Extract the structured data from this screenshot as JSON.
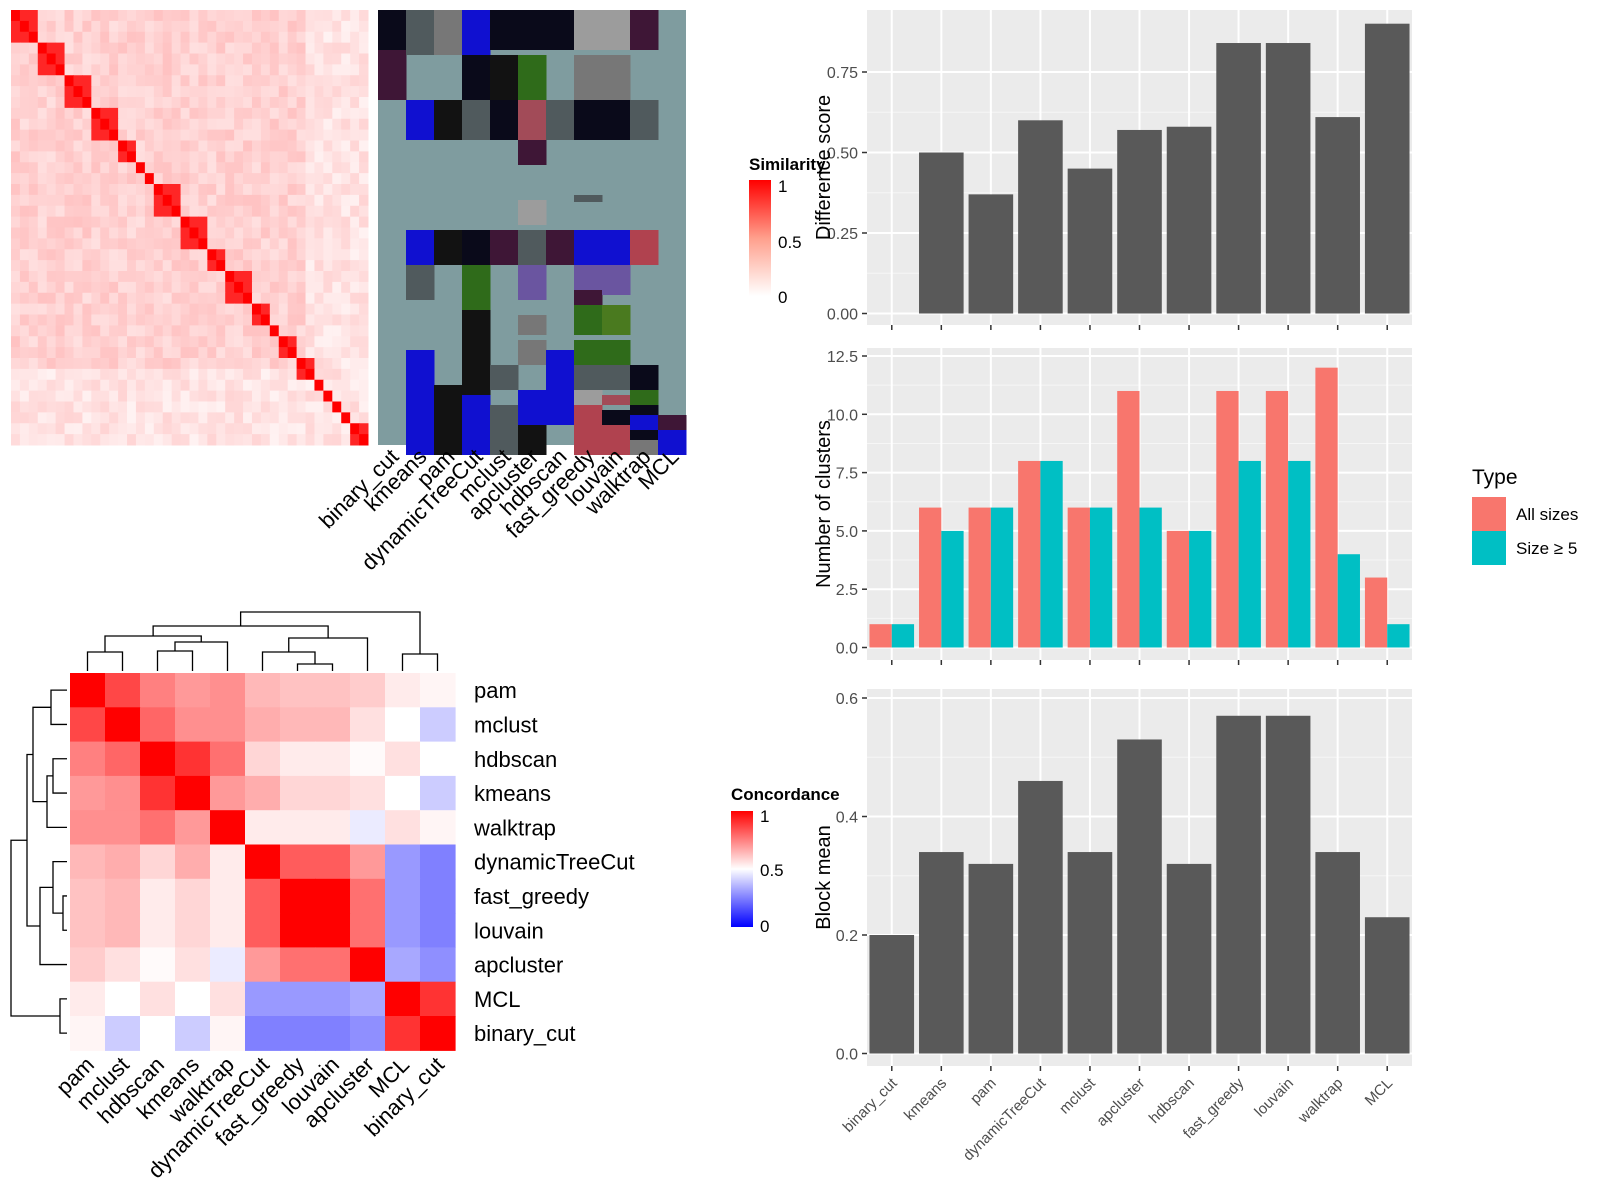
{
  "colors": {
    "panel_bg": "#ebebeb",
    "bar_dark": "#595959",
    "all_sizes": "#f8766d",
    "size_ge_5": "#00bfc4",
    "class_bg": "#7f9c9f"
  },
  "methods_sorted": [
    "binary_cut",
    "kmeans",
    "pam",
    "dynamicTreeCut",
    "mclust",
    "apcluster",
    "hdbscan",
    "fast_greedy",
    "louvain",
    "walktrap",
    "MCL"
  ],
  "similarity_legend": {
    "title": "Similarity",
    "ticks": [
      "1",
      "0.5",
      "0"
    ]
  },
  "concordance_legend": {
    "title": "Concordance",
    "ticks": [
      "1",
      "0.5",
      "0"
    ]
  },
  "chart_data": [
    {
      "type": "bar",
      "ylabel": "Difference score",
      "ylim": [
        0,
        0.9
      ],
      "yticks": [
        "0.00",
        "0.25",
        "0.50",
        "0.75"
      ],
      "categories": [
        "binary_cut",
        "kmeans",
        "pam",
        "dynamicTreeCut",
        "mclust",
        "apcluster",
        "hdbscan",
        "fast_greedy",
        "louvain",
        "walktrap",
        "MCL"
      ],
      "values": [
        0.0,
        0.5,
        0.37,
        0.6,
        0.45,
        0.57,
        0.58,
        0.84,
        0.84,
        0.61,
        0.9
      ]
    },
    {
      "type": "bar",
      "ylabel": "Number of clusters",
      "ylim": [
        0,
        12.5
      ],
      "yticks": [
        "0.0",
        "2.5",
        "5.0",
        "7.5",
        "10.0",
        "12.5"
      ],
      "categories": [
        "binary_cut",
        "kmeans",
        "pam",
        "dynamicTreeCut",
        "mclust",
        "apcluster",
        "hdbscan",
        "fast_greedy",
        "louvain",
        "walktrap",
        "MCL"
      ],
      "legend": {
        "title": "Type",
        "placement": "right"
      },
      "series": [
        {
          "name": "All sizes",
          "values": [
            1,
            6,
            6,
            8,
            6,
            11,
            5,
            11,
            11,
            12,
            3
          ]
        },
        {
          "name": "Size ≥ 5",
          "values": [
            1,
            5,
            6,
            8,
            6,
            6,
            5,
            8,
            8,
            4,
            1
          ]
        }
      ]
    },
    {
      "type": "bar",
      "ylabel": "Block mean",
      "ylim": [
        0,
        0.6
      ],
      "yticks": [
        "0.0",
        "0.2",
        "0.4",
        "0.6"
      ],
      "categories": [
        "binary_cut",
        "kmeans",
        "pam",
        "dynamicTreeCut",
        "mclust",
        "apcluster",
        "hdbscan",
        "fast_greedy",
        "louvain",
        "walktrap",
        "MCL"
      ],
      "values": [
        0.2,
        0.34,
        0.32,
        0.46,
        0.34,
        0.53,
        0.32,
        0.57,
        0.57,
        0.34,
        0.23
      ]
    },
    {
      "type": "heatmap",
      "name": "concordance",
      "order": [
        "pam",
        "mclust",
        "hdbscan",
        "kmeans",
        "walktrap",
        "dynamicTreeCut",
        "fast_greedy",
        "louvain",
        "apcluster",
        "MCL",
        "binary_cut"
      ],
      "values": [
        [
          1.0,
          0.86,
          0.75,
          0.7,
          0.72,
          0.64,
          0.62,
          0.62,
          0.6,
          0.54,
          0.52
        ],
        [
          0.86,
          1.0,
          0.8,
          0.72,
          0.72,
          0.66,
          0.64,
          0.64,
          0.56,
          0.5,
          0.4
        ],
        [
          0.75,
          0.8,
          1.0,
          0.9,
          0.78,
          0.58,
          0.54,
          0.54,
          0.51,
          0.56,
          0.5
        ],
        [
          0.7,
          0.72,
          0.9,
          1.0,
          0.7,
          0.66,
          0.58,
          0.58,
          0.56,
          0.5,
          0.4
        ],
        [
          0.72,
          0.72,
          0.78,
          0.7,
          1.0,
          0.54,
          0.54,
          0.54,
          0.46,
          0.56,
          0.52
        ],
        [
          0.64,
          0.66,
          0.58,
          0.66,
          0.54,
          1.0,
          0.82,
          0.82,
          0.7,
          0.3,
          0.25
        ],
        [
          0.62,
          0.64,
          0.54,
          0.58,
          0.54,
          0.82,
          1.0,
          1.0,
          0.78,
          0.3,
          0.25
        ],
        [
          0.62,
          0.64,
          0.54,
          0.58,
          0.54,
          0.82,
          1.0,
          1.0,
          0.78,
          0.3,
          0.25
        ],
        [
          0.6,
          0.56,
          0.51,
          0.56,
          0.46,
          0.7,
          0.78,
          0.78,
          1.0,
          0.33,
          0.28
        ],
        [
          0.54,
          0.5,
          0.56,
          0.5,
          0.56,
          0.3,
          0.3,
          0.3,
          0.33,
          1.0,
          0.9
        ],
        [
          0.52,
          0.4,
          0.5,
          0.4,
          0.52,
          0.25,
          0.25,
          0.25,
          0.28,
          0.9,
          1.0
        ]
      ]
    },
    {
      "type": "heatmap",
      "name": "term_similarity",
      "columns": [
        "binary_cut",
        "kmeans",
        "pam",
        "dynamicTreeCut",
        "mclust",
        "apcluster",
        "hdbscan",
        "fast_greedy",
        "louvain",
        "walktrap",
        "MCL"
      ],
      "rows": 40
    }
  ]
}
